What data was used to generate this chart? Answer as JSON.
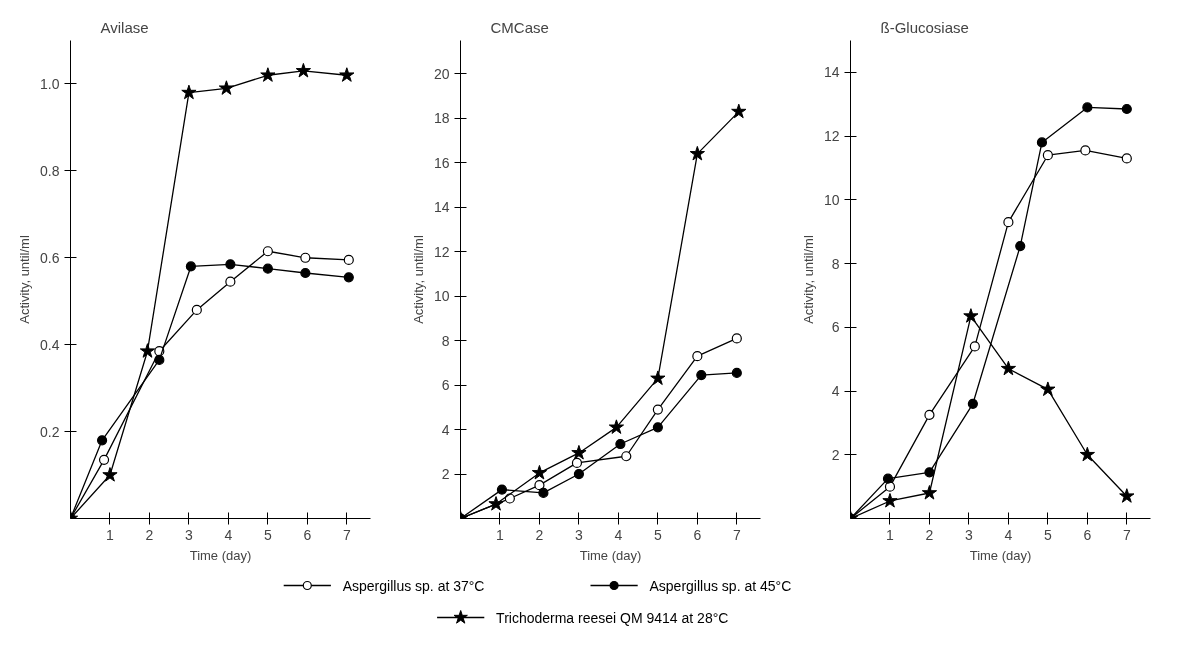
{
  "chart_data": [
    {
      "type": "line",
      "title": "Avilase",
      "xlabel": "Time (day)",
      "ylabel": "Activity, until/ml",
      "xlim": [
        0,
        7.6
      ],
      "ylim": [
        0,
        1.1
      ],
      "xticks": [
        1,
        2,
        3,
        4,
        5,
        6,
        7
      ],
      "yticks": [
        0.2,
        0.4,
        0.6,
        0.8,
        {
          "value": 1.0,
          "label": "1.0"
        }
      ],
      "grid": false,
      "legend": "bottom",
      "series": [
        {
          "name": "Aspergillus sp. at 37°C",
          "color": "#ffffff",
          "marker": "circle",
          "x": [
            0,
            0.85,
            2.25,
            3.2,
            4.05,
            5.0,
            5.95,
            7.05
          ],
          "values": [
            0,
            0.135,
            0.385,
            0.48,
            0.545,
            0.615,
            0.6,
            0.595
          ]
        },
        {
          "name": "Aspergillus sp. at 45°C",
          "color": "#000000",
          "marker": "circle",
          "x": [
            0,
            0.8,
            2.25,
            3.05,
            4.05,
            5.0,
            5.95,
            7.05
          ],
          "values": [
            0,
            0.18,
            0.365,
            0.58,
            0.585,
            0.575,
            0.565,
            0.555
          ]
        },
        {
          "name": "Trichoderma reesei QM 9414 at 28°C",
          "color": "#000000",
          "marker": "star",
          "x": [
            0,
            1.0,
            1.95,
            3.0,
            3.95,
            5.0,
            5.9,
            7.0
          ],
          "values": [
            0,
            0.1,
            0.385,
            0.98,
            0.99,
            1.02,
            1.03,
            1.02
          ]
        }
      ]
    },
    {
      "type": "line",
      "title": "CMCase",
      "xlabel": "Time (day)",
      "ylabel": "Activity, until/ml",
      "xlim": [
        0,
        7.6
      ],
      "ylim": [
        0,
        21.5
      ],
      "xticks": [
        1,
        2,
        3,
        4,
        5,
        6,
        7
      ],
      "yticks": [
        2,
        4,
        6,
        8,
        10,
        12,
        14,
        16,
        18,
        20
      ],
      "grid": false,
      "series": [
        {
          "color": "#ffffff",
          "marker": "circle",
          "x": [
            0,
            1.25,
            2.0,
            2.95,
            4.2,
            5.0,
            6.0,
            7.0
          ],
          "values": [
            0,
            0.9,
            1.5,
            2.5,
            2.8,
            4.9,
            7.3,
            8.1
          ]
        },
        {
          "color": "#000000",
          "marker": "circle",
          "x": [
            0,
            1.05,
            2.1,
            3.0,
            4.05,
            5.0,
            6.1,
            7.0
          ],
          "values": [
            0,
            1.3,
            1.15,
            2.0,
            3.35,
            4.1,
            6.45,
            6.55
          ]
        },
        {
          "color": "#000000",
          "marker": "star",
          "x": [
            0,
            0.9,
            2.0,
            3.0,
            3.95,
            5.0,
            6.0,
            7.05
          ],
          "values": [
            0,
            0.65,
            2.05,
            2.95,
            4.1,
            6.3,
            16.4,
            18.3
          ]
        }
      ]
    },
    {
      "type": "line",
      "title": "ß-Glucosiase",
      "xlabel": "Time (day)",
      "ylabel": "Activity, until/ml",
      "xlim": [
        0,
        7.6
      ],
      "ylim": [
        0,
        15
      ],
      "xticks": [
        1,
        2,
        3,
        4,
        5,
        6,
        7
      ],
      "yticks": [
        2,
        4,
        6,
        8,
        10,
        12,
        14
      ],
      "grid": false,
      "series": [
        {
          "color": "#ffffff",
          "marker": "circle",
          "x": [
            0,
            1.0,
            2.0,
            3.15,
            4.0,
            5.0,
            5.95,
            7.0
          ],
          "values": [
            0,
            1.0,
            3.25,
            5.4,
            9.3,
            11.4,
            11.55,
            11.3
          ]
        },
        {
          "color": "#000000",
          "marker": "circle",
          "x": [
            0,
            0.95,
            2.0,
            3.1,
            4.3,
            4.85,
            6.0,
            7.0
          ],
          "values": [
            0,
            1.25,
            1.45,
            3.6,
            8.55,
            11.8,
            12.9,
            12.85
          ]
        },
        {
          "color": "#000000",
          "marker": "star",
          "x": [
            0,
            1.0,
            2.0,
            3.05,
            4.0,
            5.0,
            6.0,
            7.0
          ],
          "values": [
            0,
            0.55,
            0.8,
            6.35,
            4.7,
            4.05,
            2.0,
            0.7
          ]
        }
      ]
    }
  ]
}
